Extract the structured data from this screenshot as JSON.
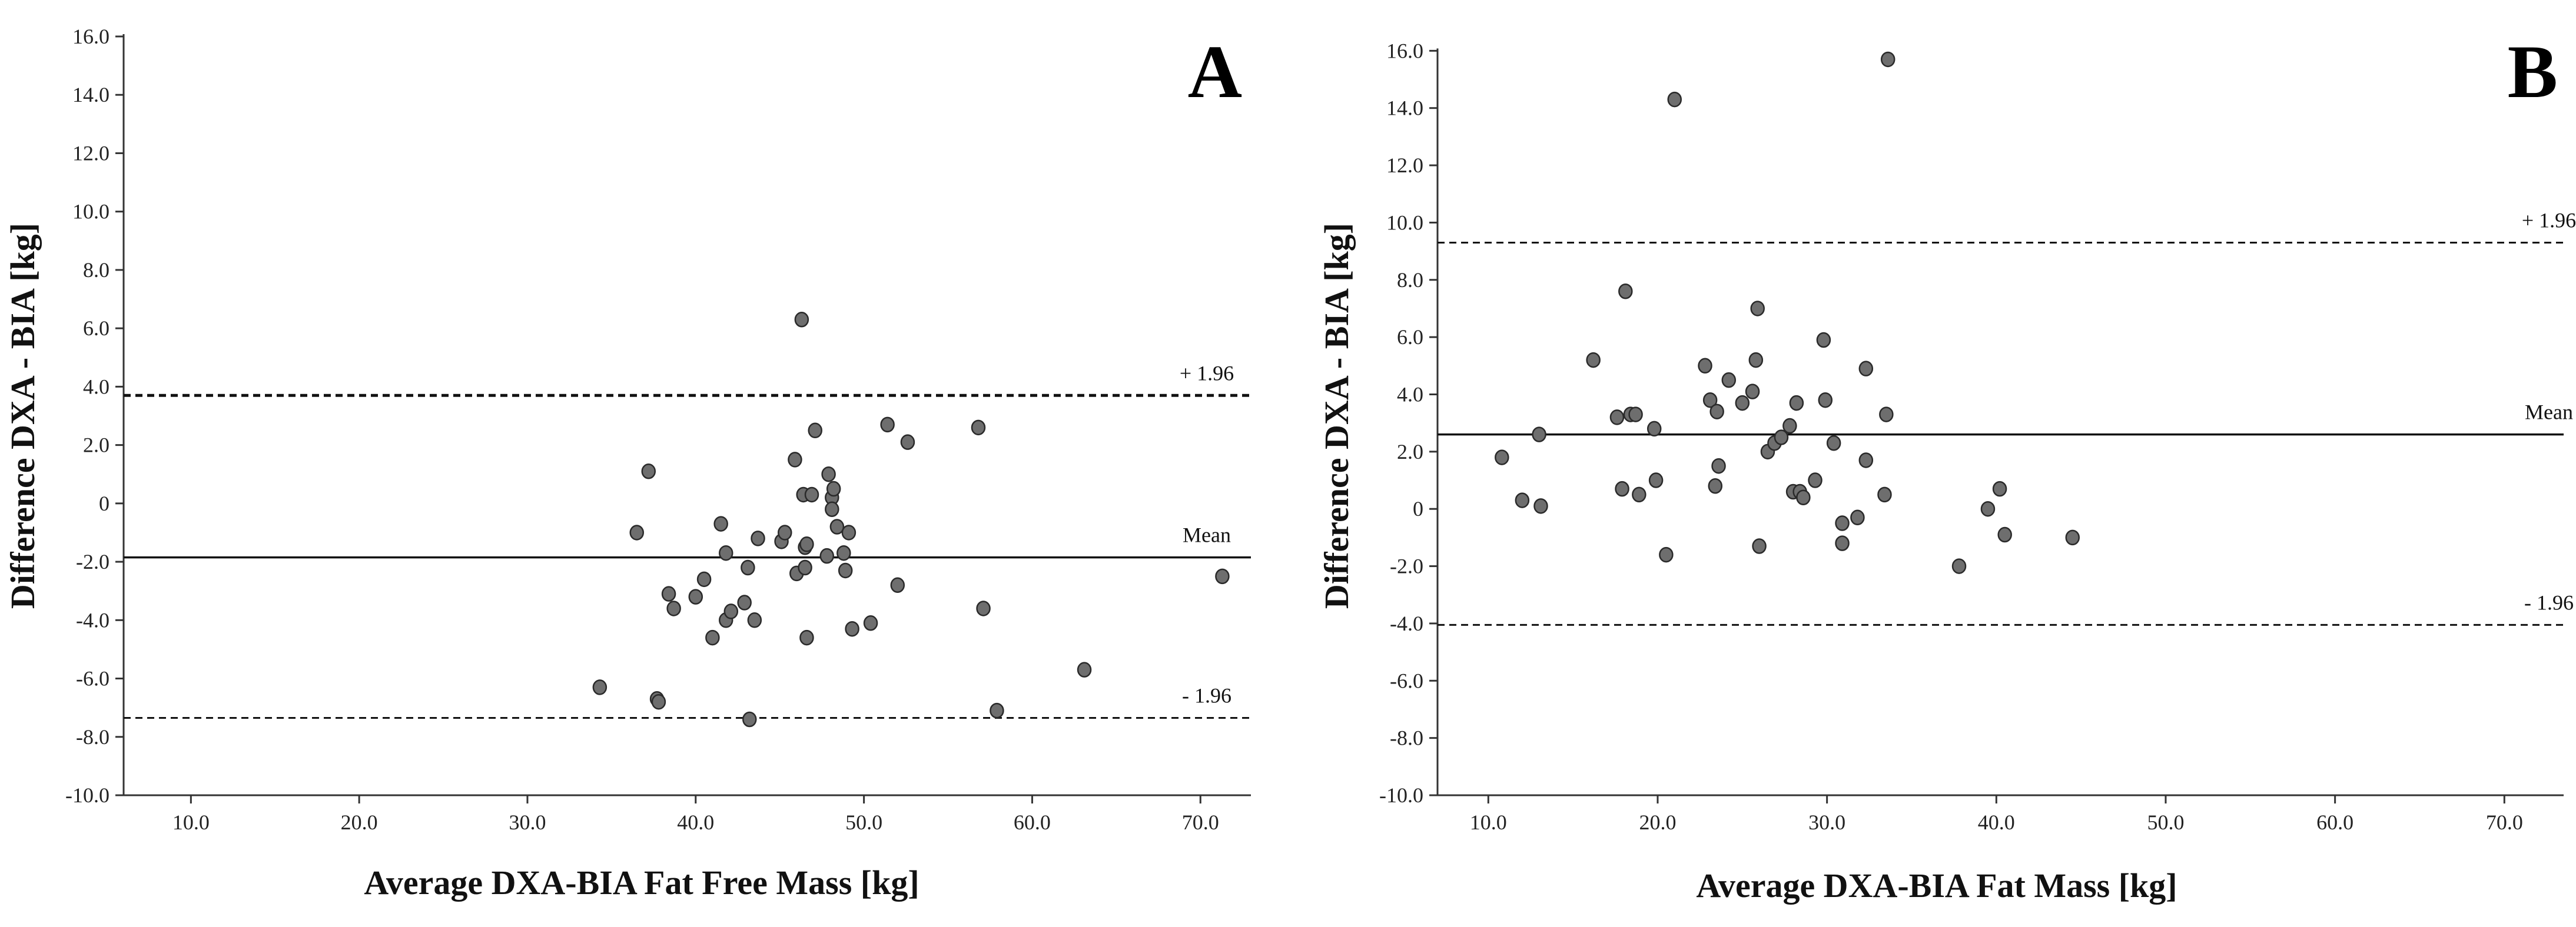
{
  "chart_data": [
    {
      "type": "scatter",
      "panel_label": "A",
      "xlabel": "Average DXA-BIA Fat Free Mass [kg]",
      "ylabel": "Difference DXA - BIA [kg]",
      "xlim": [
        6.0,
        73.0
      ],
      "ylim": [
        -10.0,
        16.0
      ],
      "x_ticks": [
        10.0,
        20.0,
        30.0,
        40.0,
        50.0,
        60.0,
        70.0
      ],
      "x_tick_labels": [
        "10.0",
        "20.0",
        "30.0",
        "40.0",
        "50.0",
        "60.0",
        "70.0"
      ],
      "y_ticks": [
        16.0,
        14.0,
        12.0,
        10.0,
        8.0,
        6.0,
        4.0,
        2.0,
        0.0,
        -2.0,
        -4.0,
        -6.0,
        -8.0,
        -10.0
      ],
      "y_tick_labels": [
        "16.0",
        "14.0",
        "12.0",
        "10.0",
        "8.0",
        "6.0",
        "4.0",
        "2.0",
        "0",
        "-2.0",
        "-4.0",
        "-6.0",
        "-8.0",
        "-10.0"
      ],
      "reference_lines": [
        {
          "label": "+ 1.96",
          "value": 3.7,
          "style": "dashed"
        },
        {
          "label": "Mean",
          "value": -1.85,
          "style": "solid"
        },
        {
          "label": "- 1.96",
          "value": -7.35,
          "style": "dashed"
        }
      ],
      "points": [
        [
          34.3,
          -6.3
        ],
        [
          36.5,
          -1.0
        ],
        [
          37.2,
          1.1
        ],
        [
          37.7,
          -6.7
        ],
        [
          37.8,
          -6.8
        ],
        [
          38.4,
          -3.1
        ],
        [
          38.7,
          -3.6
        ],
        [
          40.0,
          -3.2
        ],
        [
          40.5,
          -2.6
        ],
        [
          41.0,
          -4.6
        ],
        [
          41.5,
          -0.7
        ],
        [
          41.8,
          -4.0
        ],
        [
          41.8,
          -1.7
        ],
        [
          42.1,
          -3.7
        ],
        [
          42.9,
          -3.4
        ],
        [
          43.1,
          -2.2
        ],
        [
          43.2,
          -7.4
        ],
        [
          43.5,
          -4.0
        ],
        [
          43.7,
          -1.2
        ],
        [
          45.1,
          -1.3
        ],
        [
          45.3,
          -1.0
        ],
        [
          45.9,
          1.5
        ],
        [
          46.0,
          -2.4
        ],
        [
          46.3,
          6.3
        ],
        [
          46.4,
          0.3
        ],
        [
          46.5,
          -1.5
        ],
        [
          46.5,
          -2.2
        ],
        [
          46.6,
          -4.6
        ],
        [
          46.6,
          -1.4
        ],
        [
          46.9,
          0.3
        ],
        [
          47.1,
          2.5
        ],
        [
          47.8,
          -1.8
        ],
        [
          47.9,
          1.0
        ],
        [
          48.1,
          0.2
        ],
        [
          48.1,
          -0.2
        ],
        [
          48.2,
          0.5
        ],
        [
          48.4,
          -0.8
        ],
        [
          48.8,
          -1.7
        ],
        [
          49.1,
          -1.0
        ],
        [
          48.9,
          -2.3
        ],
        [
          49.3,
          -4.3
        ],
        [
          50.4,
          -4.1
        ],
        [
          51.4,
          2.7
        ],
        [
          52.0,
          -2.8
        ],
        [
          52.6,
          2.1
        ],
        [
          56.8,
          2.6
        ],
        [
          57.1,
          -3.6
        ],
        [
          57.9,
          -7.1
        ],
        [
          63.1,
          -5.7
        ],
        [
          71.3,
          -2.5
        ]
      ]
    },
    {
      "type": "scatter",
      "panel_label": "B",
      "xlabel": "Average DXA-BIA Fat Mass [kg]",
      "ylabel": "Difference DXA - BIA [kg]",
      "xlim": [
        7.0,
        73.5
      ],
      "ylim": [
        -10.0,
        16.5
      ],
      "x_ticks": [
        10.0,
        20.0,
        30.0,
        40.0,
        50.0,
        60.0,
        70.0
      ],
      "x_tick_labels": [
        "10.0",
        "20.0",
        "30.0",
        "40.0",
        "50.0",
        "60.0",
        "70.0"
      ],
      "y_ticks": [
        16.0,
        14.0,
        12.0,
        10.0,
        8.0,
        6.0,
        4.0,
        2.0,
        0.0,
        -2.0,
        -4.0,
        -6.0,
        -8.0,
        -10.0
      ],
      "y_tick_labels": [
        "16.0",
        "14.0",
        "12.0",
        "10.0",
        "8.0",
        "6.0",
        "4.0",
        "2.0",
        "0",
        "-2.0",
        "-4.0",
        "-6.0",
        "-8.0",
        "-10.0"
      ],
      "reference_lines": [
        {
          "label": "+ 1.96",
          "value": 9.3,
          "style": "dashed"
        },
        {
          "label": "Mean",
          "value": 2.6,
          "style": "solid"
        },
        {
          "label": "- 1.96",
          "value": -4.05,
          "style": "dashed"
        }
      ],
      "points": [
        [
          10.8,
          1.8
        ],
        [
          12.0,
          0.3
        ],
        [
          13.0,
          2.6
        ],
        [
          13.1,
          0.1
        ],
        [
          16.2,
          5.2
        ],
        [
          17.6,
          3.2
        ],
        [
          17.9,
          0.7
        ],
        [
          18.1,
          7.6
        ],
        [
          18.4,
          3.3
        ],
        [
          18.7,
          3.3
        ],
        [
          18.9,
          0.5
        ],
        [
          19.8,
          2.8
        ],
        [
          19.9,
          1.0
        ],
        [
          20.5,
          -1.6
        ],
        [
          21.0,
          14.3
        ],
        [
          22.8,
          5.0
        ],
        [
          23.1,
          3.8
        ],
        [
          23.4,
          0.8
        ],
        [
          23.5,
          3.4
        ],
        [
          23.6,
          1.5
        ],
        [
          24.2,
          4.5
        ],
        [
          25.0,
          3.7
        ],
        [
          25.6,
          4.1
        ],
        [
          25.8,
          5.2
        ],
        [
          25.9,
          7.0
        ],
        [
          26.0,
          -1.3
        ],
        [
          26.5,
          2.0
        ],
        [
          26.9,
          2.3
        ],
        [
          27.3,
          2.5
        ],
        [
          27.8,
          2.9
        ],
        [
          28.0,
          0.6
        ],
        [
          28.2,
          3.7
        ],
        [
          28.4,
          0.6
        ],
        [
          28.6,
          0.4
        ],
        [
          29.3,
          1.0
        ],
        [
          29.8,
          5.9
        ],
        [
          29.9,
          3.8
        ],
        [
          30.4,
          2.3
        ],
        [
          30.9,
          -1.2
        ],
        [
          30.9,
          -0.5
        ],
        [
          31.8,
          -0.3
        ],
        [
          32.3,
          1.7
        ],
        [
          32.3,
          4.9
        ],
        [
          33.4,
          0.5
        ],
        [
          33.5,
          3.3
        ],
        [
          33.6,
          15.7
        ],
        [
          37.8,
          -2.0
        ],
        [
          39.5,
          0.0
        ],
        [
          40.2,
          0.7
        ],
        [
          40.5,
          -0.9
        ],
        [
          44.5,
          -1.0
        ]
      ]
    }
  ]
}
